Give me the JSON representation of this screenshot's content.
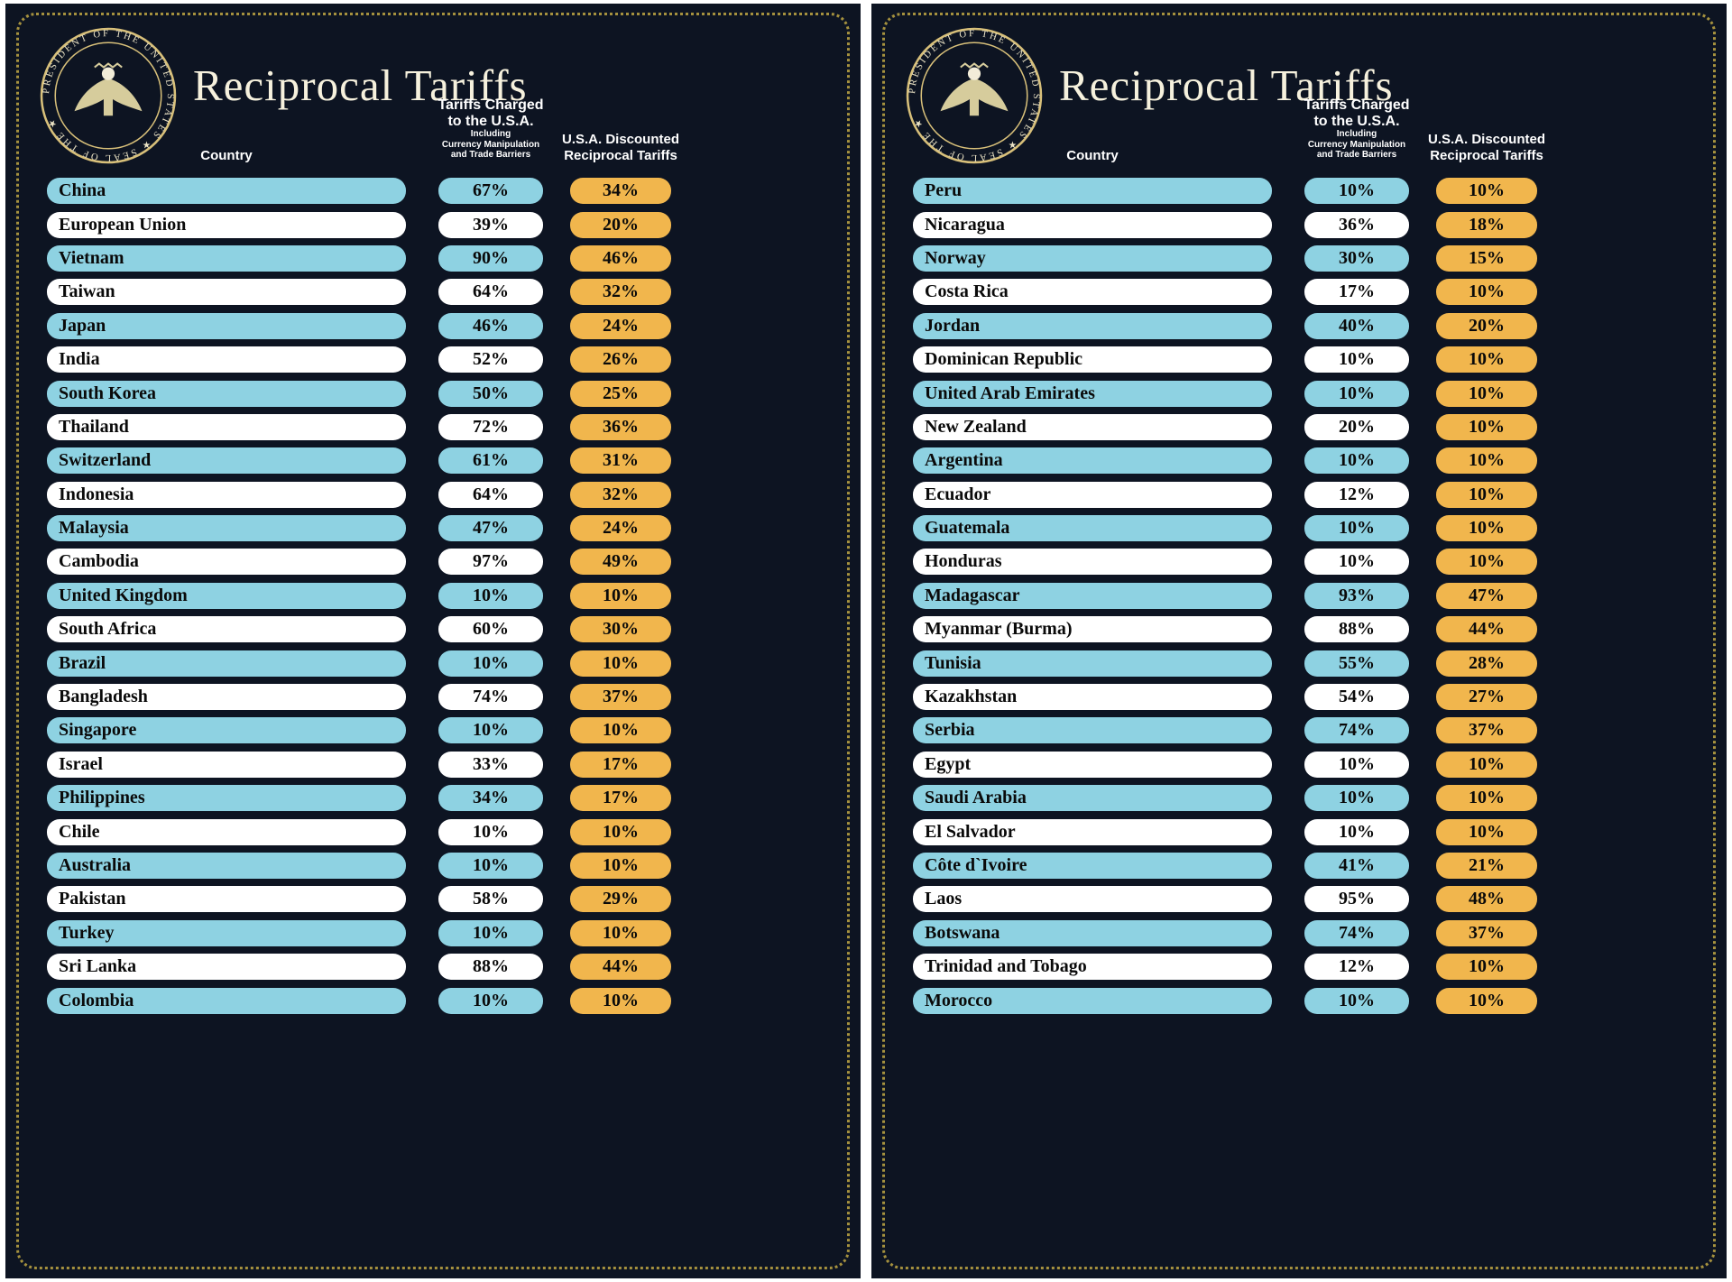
{
  "colors": {
    "background": "#0d1422",
    "row_blue": "#8ed2e2",
    "row_white": "#ffffff",
    "gold": "#f1b64d",
    "border_dot": "#a5913e",
    "title": "#f6f1dd",
    "header_text": "#ffffff"
  },
  "board": {
    "title": "Reciprocal Tariffs",
    "seal_text": "PRESIDENT OF THE UNITED STATES ★ SEAL OF THE ★",
    "col_country": "Country",
    "col_charged_line1": "Tariffs Charged",
    "col_charged_line2": "to the U.S.A.",
    "col_charged_sub1": "Including",
    "col_charged_sub2": "Currency Manipulation",
    "col_charged_sub3": "and Trade Barriers",
    "col_discount_line1": "U.S.A. Discounted",
    "col_discount_line2": "Reciprocal Tariffs"
  },
  "chart_data": [
    {
      "type": "table",
      "title": "Reciprocal Tariffs",
      "columns": [
        "Country",
        "Tariffs Charged to the U.S.A. Including Currency Manipulation and Trade Barriers",
        "U.S.A. Discounted Reciprocal Tariffs"
      ],
      "rows": [
        [
          "China",
          "67%",
          "34%"
        ],
        [
          "European Union",
          "39%",
          "20%"
        ],
        [
          "Vietnam",
          "90%",
          "46%"
        ],
        [
          "Taiwan",
          "64%",
          "32%"
        ],
        [
          "Japan",
          "46%",
          "24%"
        ],
        [
          "India",
          "52%",
          "26%"
        ],
        [
          "South Korea",
          "50%",
          "25%"
        ],
        [
          "Thailand",
          "72%",
          "36%"
        ],
        [
          "Switzerland",
          "61%",
          "31%"
        ],
        [
          "Indonesia",
          "64%",
          "32%"
        ],
        [
          "Malaysia",
          "47%",
          "24%"
        ],
        [
          "Cambodia",
          "97%",
          "49%"
        ],
        [
          "United Kingdom",
          "10%",
          "10%"
        ],
        [
          "South Africa",
          "60%",
          "30%"
        ],
        [
          "Brazil",
          "10%",
          "10%"
        ],
        [
          "Bangladesh",
          "74%",
          "37%"
        ],
        [
          "Singapore",
          "10%",
          "10%"
        ],
        [
          "Israel",
          "33%",
          "17%"
        ],
        [
          "Philippines",
          "34%",
          "17%"
        ],
        [
          "Chile",
          "10%",
          "10%"
        ],
        [
          "Australia",
          "10%",
          "10%"
        ],
        [
          "Pakistan",
          "58%",
          "29%"
        ],
        [
          "Turkey",
          "10%",
          "10%"
        ],
        [
          "Sri Lanka",
          "88%",
          "44%"
        ],
        [
          "Colombia",
          "10%",
          "10%"
        ]
      ]
    },
    {
      "type": "table",
      "title": "Reciprocal Tariffs",
      "columns": [
        "Country",
        "Tariffs Charged to the U.S.A. Including Currency Manipulation and Trade Barriers",
        "U.S.A. Discounted Reciprocal Tariffs"
      ],
      "rows": [
        [
          "Peru",
          "10%",
          "10%"
        ],
        [
          "Nicaragua",
          "36%",
          "18%"
        ],
        [
          "Norway",
          "30%",
          "15%"
        ],
        [
          "Costa Rica",
          "17%",
          "10%"
        ],
        [
          "Jordan",
          "40%",
          "20%"
        ],
        [
          "Dominican Republic",
          "10%",
          "10%"
        ],
        [
          "United Arab Emirates",
          "10%",
          "10%"
        ],
        [
          "New Zealand",
          "20%",
          "10%"
        ],
        [
          "Argentina",
          "10%",
          "10%"
        ],
        [
          "Ecuador",
          "12%",
          "10%"
        ],
        [
          "Guatemala",
          "10%",
          "10%"
        ],
        [
          "Honduras",
          "10%",
          "10%"
        ],
        [
          "Madagascar",
          "93%",
          "47%"
        ],
        [
          "Myanmar (Burma)",
          "88%",
          "44%"
        ],
        [
          "Tunisia",
          "55%",
          "28%"
        ],
        [
          "Kazakhstan",
          "54%",
          "27%"
        ],
        [
          "Serbia",
          "74%",
          "37%"
        ],
        [
          "Egypt",
          "10%",
          "10%"
        ],
        [
          "Saudi Arabia",
          "10%",
          "10%"
        ],
        [
          "El Salvador",
          "10%",
          "10%"
        ],
        [
          "Côte d`Ivoire",
          "41%",
          "21%"
        ],
        [
          "Laos",
          "95%",
          "48%"
        ],
        [
          "Botswana",
          "74%",
          "37%"
        ],
        [
          "Trinidad and Tobago",
          "12%",
          "10%"
        ],
        [
          "Morocco",
          "10%",
          "10%"
        ]
      ]
    }
  ]
}
